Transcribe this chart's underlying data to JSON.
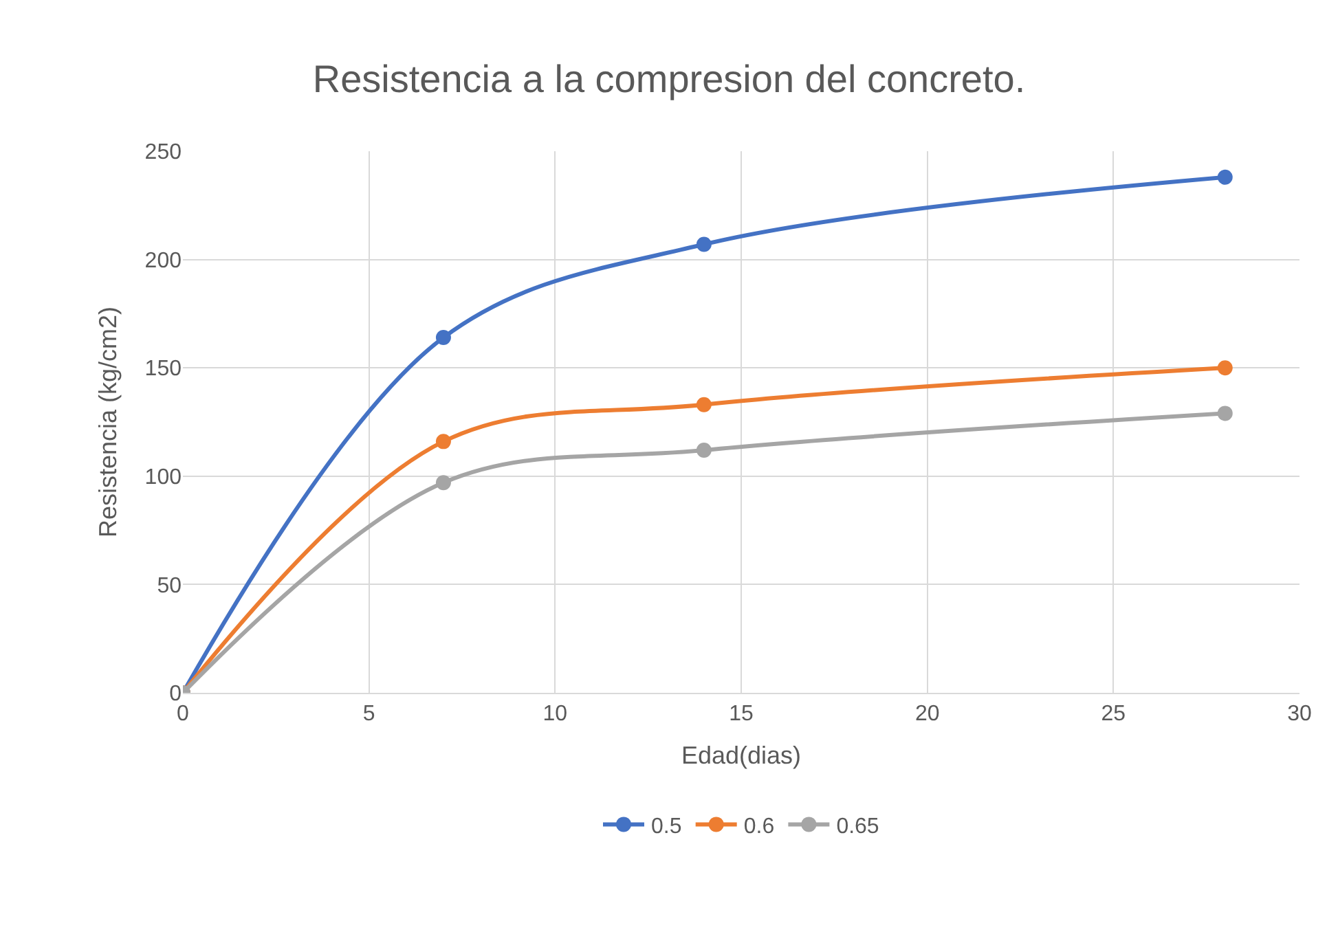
{
  "chart_data": {
    "type": "line",
    "title": "Resistencia a la compresion del concreto.",
    "xlabel": "Edad(dias)",
    "ylabel": "Resistencia (kg/cm2)",
    "x": [
      0,
      7,
      14,
      28
    ],
    "series": [
      {
        "name": "0.5",
        "color": "#4472c4",
        "values": [
          0,
          164,
          207,
          238
        ]
      },
      {
        "name": "0.6",
        "color": "#ed7d31",
        "values": [
          0,
          116,
          133,
          150
        ]
      },
      {
        "name": "0.65",
        "color": "#a5a5a5",
        "values": [
          0,
          97,
          112,
          129
        ]
      }
    ],
    "xlim": [
      0,
      30
    ],
    "xticks": [
      0,
      5,
      10,
      15,
      20,
      25,
      30
    ],
    "ylim": [
      0,
      250
    ],
    "yticks": [
      0,
      50,
      100,
      150,
      200,
      250
    ],
    "grid": true,
    "legend": "bottom",
    "marker": "circle",
    "line_style": "solid"
  }
}
